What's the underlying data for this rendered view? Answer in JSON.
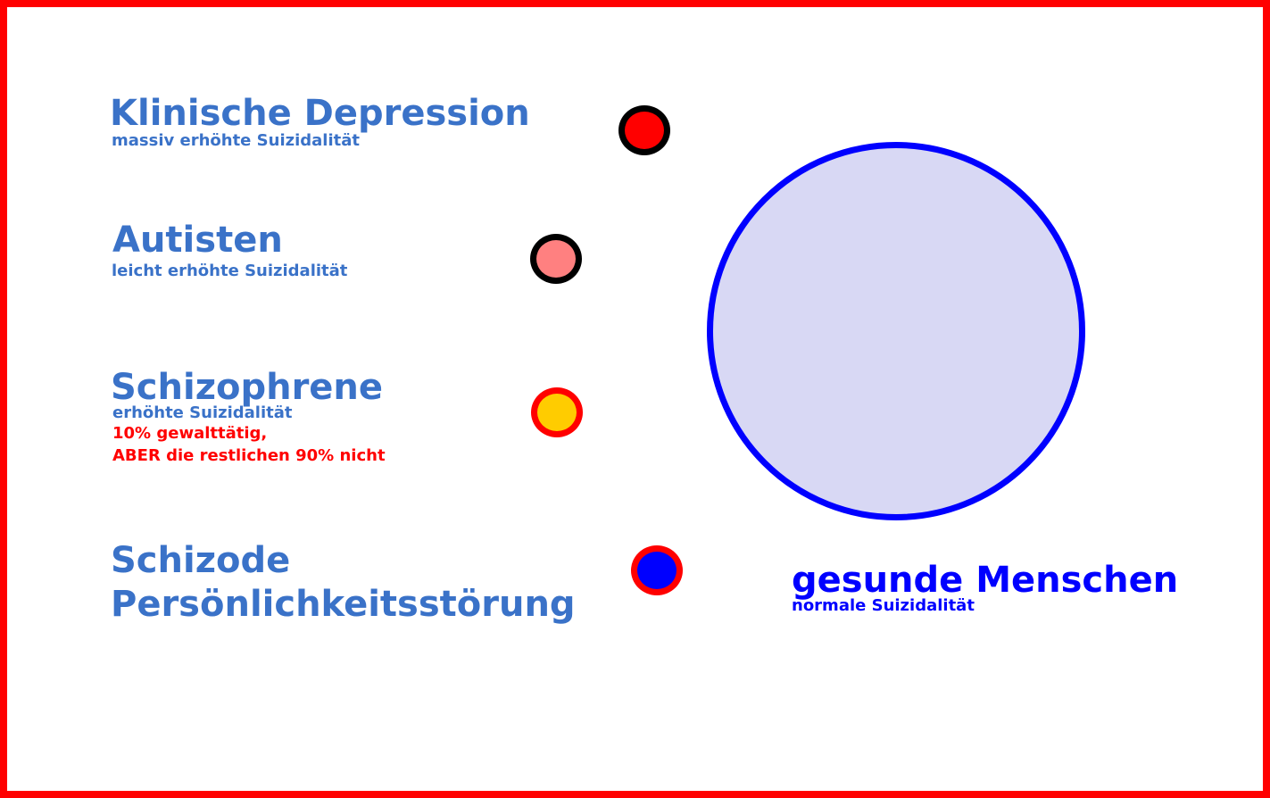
{
  "groups": {
    "depression": {
      "title": "Klinische Depression",
      "subtitle": "massiv erhöhte Suizidalität",
      "dot_fill": "#ff0000",
      "dot_stroke": "#000000"
    },
    "autism": {
      "title": "Autisten",
      "subtitle": "leicht erhöhte Suizidalität",
      "dot_fill": "#ff8080",
      "dot_stroke": "#000000"
    },
    "schizophrenia": {
      "title": "Schizophrene",
      "subtitle": "erhöhte Suizidalität",
      "note_line1": "10% gewalttätig,",
      "note_line2": "ABER die restlichen 90% nicht",
      "note_color": "#ff0000",
      "dot_fill": "#ffcc00",
      "dot_stroke": "#ff0000"
    },
    "schizoid": {
      "title_line1": "Schizode",
      "title_line2": "Persönlichkeitsstörung",
      "dot_fill": "#0000ff",
      "dot_stroke": "#ff0000"
    },
    "healthy": {
      "title": "gesunde Menschen",
      "subtitle": "normale Suizidalität",
      "text_color": "#0000ff",
      "circle_fill": "#d8d8f4",
      "circle_stroke": "#0000ff"
    }
  },
  "colors": {
    "label_text": "#3a72c8",
    "frame": "#ff0000",
    "background": "#ffffff"
  }
}
